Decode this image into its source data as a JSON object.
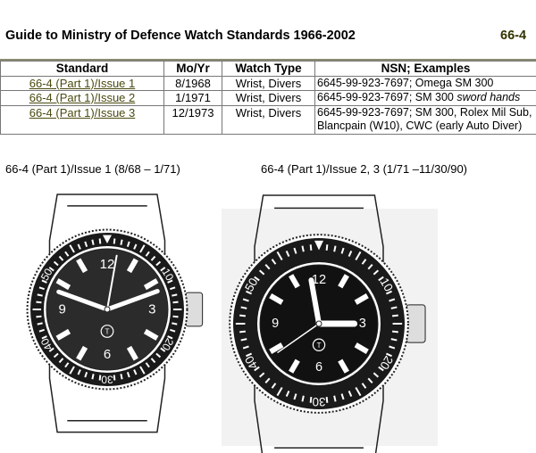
{
  "header": {
    "title": "Guide to Ministry of Defence Watch Standards 1966-2002",
    "code": "66-4"
  },
  "table": {
    "columns": [
      "Standard",
      "Mo/Yr",
      "Watch Type",
      "NSN; Examples"
    ],
    "rows": [
      {
        "standard": "66-4 (Part 1)/Issue 1",
        "date": "8/1968",
        "type": "Wrist, Divers",
        "nsn": "6645-99-923-7697; Omega SM 300",
        "nsn_italic": ""
      },
      {
        "standard": "66-4 (Part 1)/Issue 2",
        "date": "1/1971",
        "type": "Wrist, Divers",
        "nsn": "6645-99-923-7697; SM 300 ",
        "nsn_italic": "sword hands"
      },
      {
        "standard": "66-4 (Part 1)/Issue 3",
        "date": "12/1973",
        "type": "Wrist, Divers",
        "nsn": "6645-99-923-7697; SM 300, Rolex Mil Sub,",
        "nsn2": "Blancpain (W10), CWC (early Auto Diver)"
      }
    ]
  },
  "figures": [
    {
      "caption": "66-4 (Part 1)/Issue 1 (8/68 – 1/71)"
    },
    {
      "caption": "66-4 (Part 1)/Issue 2, 3 (1/71 –11/30/90)"
    }
  ],
  "dial": {
    "numerals": [
      "12",
      "3",
      "6",
      "9"
    ],
    "bezel": [
      "10",
      "20",
      "30",
      "40",
      "50"
    ],
    "logo": "T"
  }
}
